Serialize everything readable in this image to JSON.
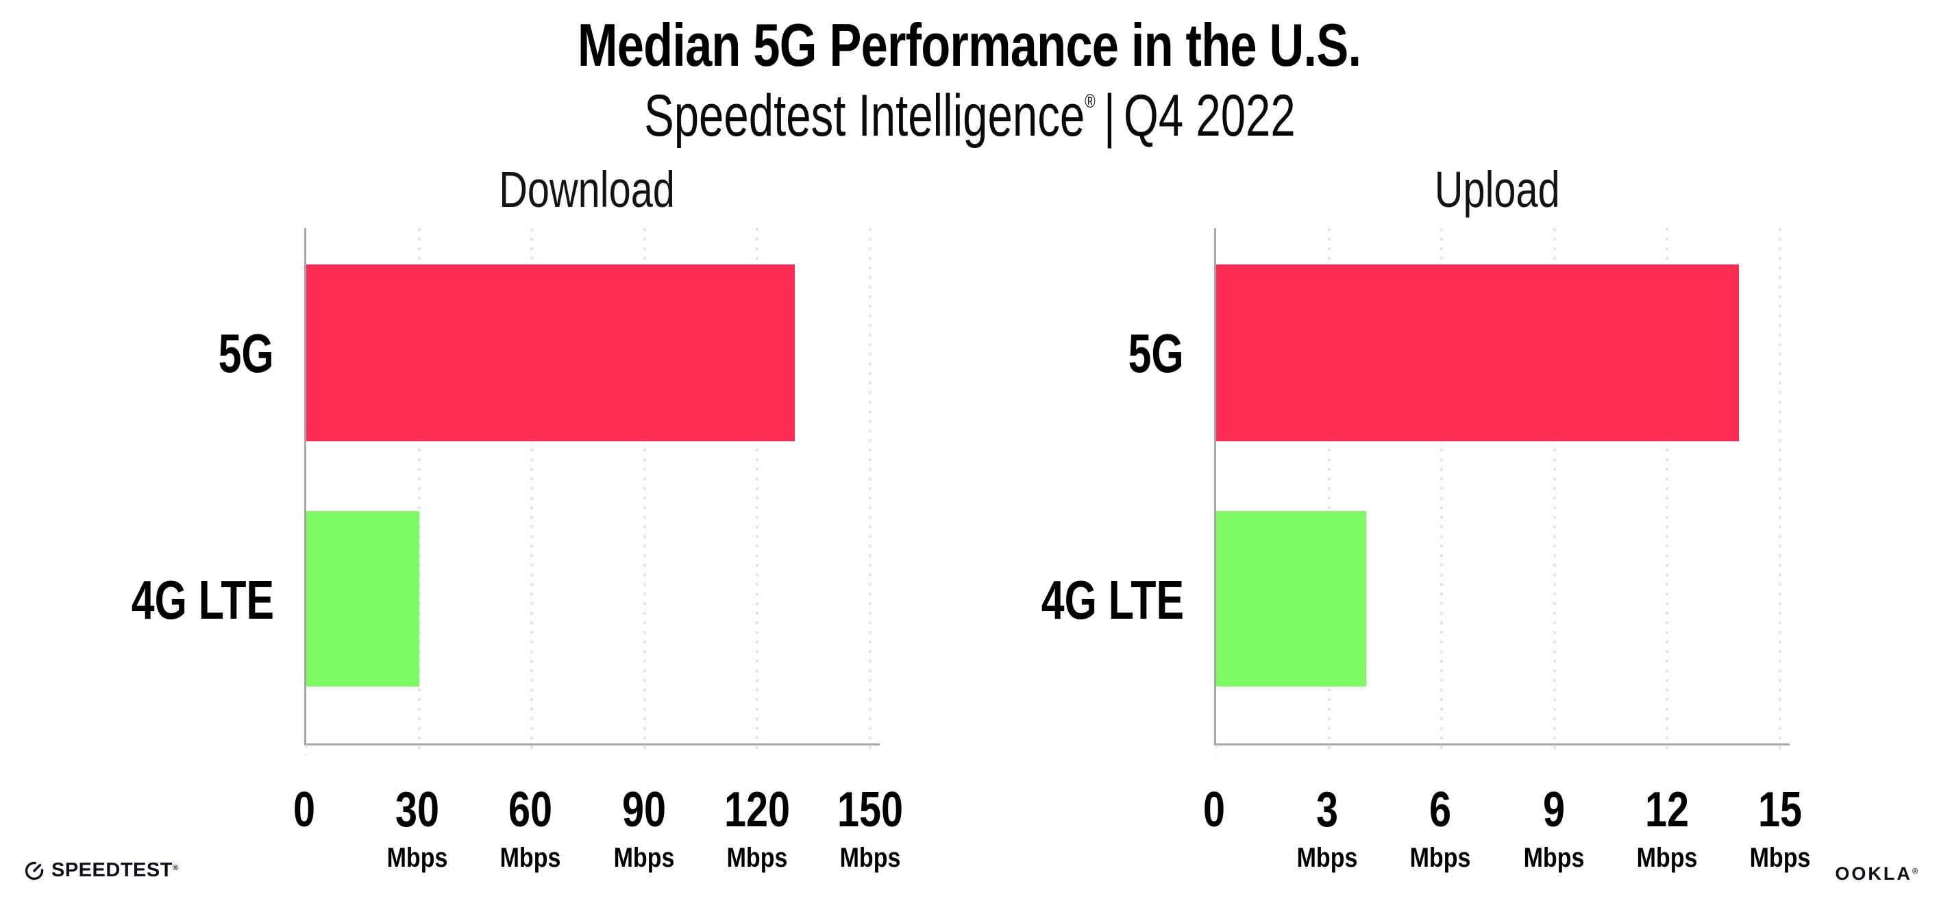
{
  "header": {
    "title": "Median 5G Performance in the U.S.",
    "subtitle_brand": "Speedtest Intelligence",
    "subtitle_reg_mark": "®",
    "subtitle_separator": "|",
    "subtitle_period": "Q4 2022"
  },
  "chart_data": [
    {
      "type": "bar",
      "orientation": "horizontal",
      "title": "Download",
      "categories": [
        "5G",
        "4G LTE"
      ],
      "values": [
        130,
        30
      ],
      "unit": "Mbps",
      "xlim": [
        0,
        150
      ],
      "xticks": [
        0,
        30,
        60,
        90,
        120,
        150
      ],
      "grid": "vertical dotted gridlines at ticks",
      "legend": "none"
    },
    {
      "type": "bar",
      "orientation": "horizontal",
      "title": "Upload",
      "categories": [
        "5G",
        "4G LTE"
      ],
      "values": [
        13.9,
        4
      ],
      "unit": "Mbps",
      "xlim": [
        0,
        15
      ],
      "xticks": [
        0,
        3,
        6,
        9,
        12,
        15
      ],
      "grid": "vertical dotted gridlines at ticks",
      "legend": "none"
    }
  ],
  "colors": {
    "bar_5g": "#FF2D55",
    "bar_4g_lte": "#80FA64",
    "axis": "#A6A5AA",
    "gridline": "#E4E3EC",
    "text": "#000000"
  },
  "footer": {
    "speedtest_wordmark": "SPEEDTEST",
    "speedtest_reg_mark": "®",
    "ookla_wordmark": "OOKLA",
    "ookla_reg_mark": "®"
  }
}
